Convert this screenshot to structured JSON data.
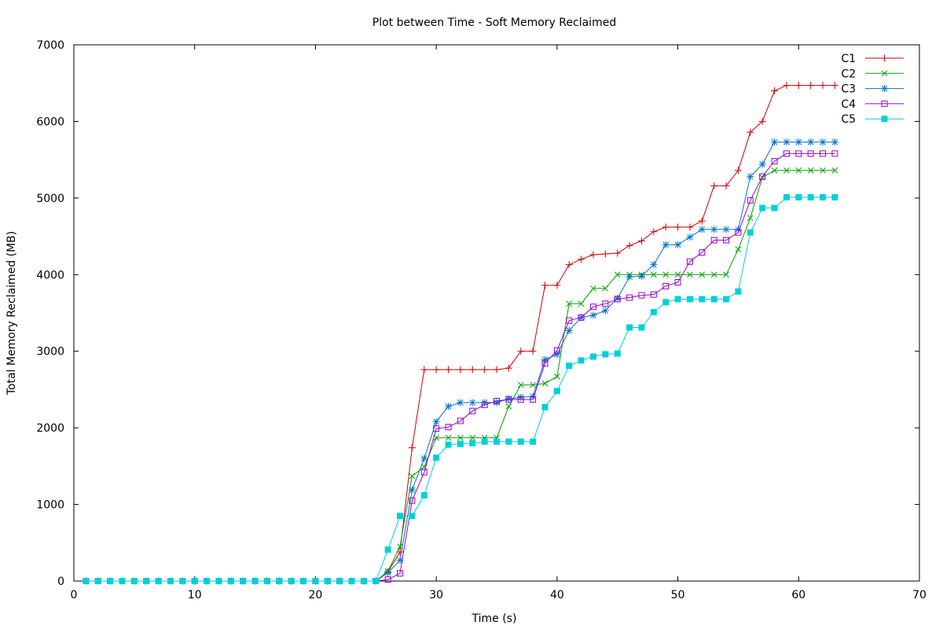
{
  "chart_data": {
    "type": "line",
    "title": "Plot between Time - Soft Memory Reclaimed",
    "xlabel": "Time (s)",
    "ylabel": "Total Memory Reclaimed (MB)",
    "xlim": [
      0,
      70
    ],
    "ylim": [
      0,
      7000
    ],
    "xticks": [
      0,
      10,
      20,
      30,
      40,
      50,
      60,
      70
    ],
    "yticks": [
      0,
      1000,
      2000,
      3000,
      4000,
      5000,
      6000,
      7000
    ],
    "grid": false,
    "legend_position": "top-right",
    "x": [
      1,
      2,
      3,
      4,
      5,
      6,
      7,
      8,
      9,
      10,
      11,
      12,
      13,
      14,
      15,
      16,
      17,
      18,
      19,
      20,
      21,
      22,
      23,
      24,
      25,
      26,
      27,
      28,
      29,
      30,
      31,
      32,
      33,
      34,
      35,
      36,
      37,
      38,
      39,
      40,
      41,
      42,
      43,
      44,
      45,
      46,
      47,
      48,
      49,
      50,
      51,
      52,
      53,
      54,
      55,
      56,
      57,
      58,
      59,
      60,
      61,
      62,
      63
    ],
    "series": [
      {
        "name": "C1",
        "color": "#cc0000",
        "marker": "plus",
        "values": [
          0,
          0,
          0,
          0,
          0,
          0,
          0,
          0,
          0,
          0,
          0,
          0,
          0,
          0,
          0,
          0,
          0,
          0,
          0,
          0,
          0,
          0,
          0,
          0,
          0,
          120,
          380,
          1740,
          2760,
          2760,
          2760,
          2760,
          2760,
          2760,
          2760,
          2780,
          3000,
          3000,
          3860,
          3860,
          4130,
          4200,
          4260,
          4270,
          4280,
          4380,
          4440,
          4560,
          4620,
          4620,
          4620,
          4700,
          5160,
          5160,
          5360,
          5860,
          6000,
          6400,
          6470,
          6470,
          6470,
          6470,
          6470
        ]
      },
      {
        "name": "C2",
        "color": "#00a000",
        "marker": "x",
        "values": [
          0,
          0,
          0,
          0,
          0,
          0,
          0,
          0,
          0,
          0,
          0,
          0,
          0,
          0,
          0,
          0,
          0,
          0,
          0,
          0,
          0,
          0,
          0,
          0,
          0,
          130,
          450,
          1370,
          1490,
          1870,
          1870,
          1870,
          1870,
          1870,
          1870,
          2280,
          2560,
          2560,
          2580,
          2670,
          3620,
          3620,
          3820,
          3820,
          4000,
          4000,
          4000,
          4000,
          4000,
          4000,
          4000,
          4000,
          4000,
          4000,
          4330,
          4740,
          5270,
          5360,
          5360,
          5360,
          5360,
          5360,
          5360
        ]
      },
      {
        "name": "C3",
        "color": "#0072cc",
        "marker": "star",
        "values": [
          0,
          0,
          0,
          0,
          0,
          0,
          0,
          0,
          0,
          0,
          0,
          0,
          0,
          0,
          0,
          0,
          0,
          0,
          0,
          0,
          0,
          0,
          0,
          0,
          0,
          110,
          270,
          1190,
          1600,
          2080,
          2280,
          2330,
          2330,
          2330,
          2330,
          2380,
          2400,
          2410,
          2890,
          2960,
          3270,
          3440,
          3470,
          3530,
          3690,
          3970,
          3980,
          4130,
          4390,
          4390,
          4490,
          4590,
          4590,
          4590,
          4590,
          5280,
          5440,
          5730,
          5730,
          5730,
          5730,
          5730,
          5730
        ]
      },
      {
        "name": "C4",
        "color": "#9900cc",
        "marker": "square-open",
        "values": [
          0,
          0,
          0,
          0,
          0,
          0,
          0,
          0,
          0,
          0,
          0,
          0,
          0,
          0,
          0,
          0,
          0,
          0,
          0,
          0,
          0,
          0,
          0,
          0,
          0,
          20,
          100,
          1050,
          1420,
          1990,
          2010,
          2090,
          2220,
          2300,
          2350,
          2370,
          2370,
          2370,
          2840,
          3010,
          3400,
          3440,
          3580,
          3620,
          3680,
          3700,
          3730,
          3740,
          3850,
          3900,
          4170,
          4290,
          4450,
          4450,
          4550,
          4970,
          5280,
          5480,
          5580,
          5580,
          5580,
          5580,
          5580
        ]
      },
      {
        "name": "C5",
        "color": "#00d0d8",
        "marker": "square-filled",
        "values": [
          0,
          0,
          0,
          0,
          0,
          0,
          0,
          0,
          0,
          0,
          0,
          0,
          0,
          0,
          0,
          0,
          0,
          0,
          0,
          0,
          0,
          0,
          0,
          0,
          0,
          410,
          850,
          850,
          1120,
          1610,
          1780,
          1790,
          1800,
          1820,
          1820,
          1820,
          1820,
          1820,
          2270,
          2480,
          2810,
          2880,
          2930,
          2960,
          2970,
          3310,
          3310,
          3510,
          3640,
          3680,
          3680,
          3680,
          3680,
          3680,
          3780,
          4550,
          4870,
          4870,
          5010,
          5010,
          5010,
          5010,
          5010
        ]
      }
    ]
  }
}
